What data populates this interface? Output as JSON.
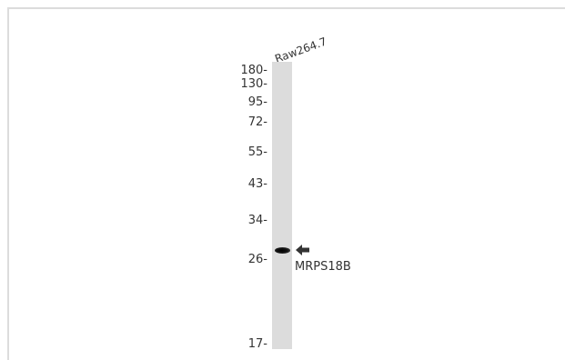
{
  "lane_label": "Raw264.7",
  "markers": [
    "180-",
    "130-",
    "95-",
    "72-",
    "55-",
    "43-",
    "34-",
    "26-",
    "17-"
  ],
  "band_label": "MRPS18B",
  "arrow_icon": "left-arrow-icon"
}
